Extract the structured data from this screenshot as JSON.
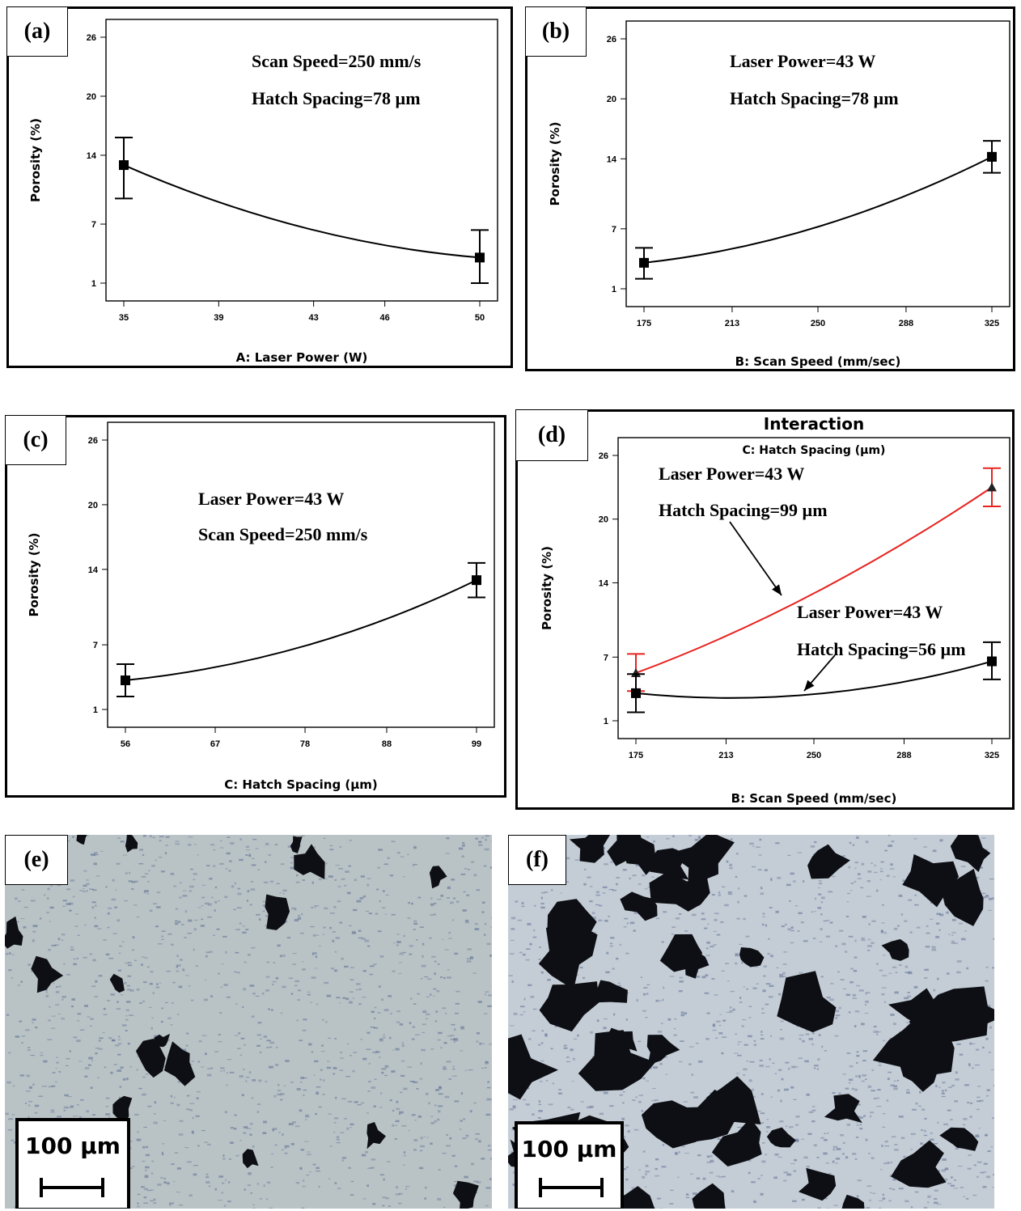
{
  "chart_data": [
    {
      "panel": "(a)",
      "type": "line",
      "xlabel": "A: Laser Power (W)",
      "ylabel": "Porosity (%)",
      "xticks": [
        35,
        39,
        43,
        46,
        50
      ],
      "yticks": [
        1,
        7,
        14,
        20,
        26
      ],
      "xlim": [
        35,
        50
      ],
      "ylim": [
        1,
        26
      ],
      "annotations": [
        "Scan Speed=250 mm/s",
        "Hatch Spacing=78 µm"
      ],
      "series": [
        {
          "points": [
            [
              35,
              13.0
            ],
            [
              50,
              3.6
            ]
          ],
          "error": [
            [
              9.6,
              15.8
            ],
            [
              1.0,
              6.4
            ]
          ],
          "curve_mid": [
            42.5,
            6.7
          ],
          "color": "#000000",
          "marker": "square"
        }
      ]
    },
    {
      "panel": "(b)",
      "type": "line",
      "xlabel": "B: Scan Speed (mm/sec)",
      "ylabel": "Porosity (%)",
      "xticks": [
        175,
        213,
        250,
        288,
        325
      ],
      "yticks": [
        1,
        7,
        14,
        20,
        26
      ],
      "xlim": [
        175,
        325
      ],
      "ylim": [
        1,
        26
      ],
      "annotations": [
        "Laser Power=43 W",
        "Hatch Spacing=78 µm"
      ],
      "series": [
        {
          "points": [
            [
              175,
              3.6
            ],
            [
              325,
              14.2
            ]
          ],
          "error": [
            [
              2.0,
              5.1
            ],
            [
              12.6,
              15.8
            ]
          ],
          "curve_mid": [
            250,
            7.2
          ],
          "color": "#000000",
          "marker": "square"
        }
      ]
    },
    {
      "panel": "(c)",
      "type": "line",
      "xlabel": "C: Hatch Spacing (µm)",
      "ylabel": "Porosity (%)",
      "xticks": [
        56,
        67,
        78,
        88,
        99
      ],
      "yticks": [
        1,
        7,
        14,
        20,
        26
      ],
      "xlim": [
        56,
        99
      ],
      "ylim": [
        1,
        26
      ],
      "annotations": [
        "Laser Power=43 W",
        "Scan Speed=250 mm/s"
      ],
      "series": [
        {
          "points": [
            [
              56,
              3.7
            ],
            [
              99,
              13.0
            ]
          ],
          "error": [
            [
              2.2,
              5.2
            ],
            [
              11.4,
              14.6
            ]
          ],
          "curve_mid": [
            78,
            6.9
          ],
          "color": "#000000",
          "marker": "square"
        }
      ]
    },
    {
      "panel": "(d)",
      "type": "line",
      "title": "Interaction",
      "subtitle": "C: Hatch Spacing (µm)",
      "xlabel": "B: Scan Speed (mm/sec)",
      "ylabel": "Porosity (%)",
      "xticks": [
        175,
        213,
        250,
        288,
        325
      ],
      "yticks": [
        1,
        7,
        14,
        20,
        26
      ],
      "xlim": [
        175,
        325
      ],
      "ylim": [
        1,
        26
      ],
      "annotations": [
        "Laser Power=43 W",
        "Hatch Spacing=99 µm",
        "Laser Power=43 W",
        "Hatch Spacing=56 µm"
      ],
      "series": [
        {
          "points": [
            [
              175,
              5.5
            ],
            [
              325,
              23.0
            ]
          ],
          "error": [
            [
              3.8,
              7.3
            ],
            [
              21.2,
              24.8
            ]
          ],
          "curve_mid": [
            250,
            13.0
          ],
          "color": "#e8231f",
          "marker": "triangle"
        },
        {
          "points": [
            [
              175,
              3.6
            ],
            [
              325,
              6.6
            ]
          ],
          "error": [
            [
              1.8,
              5.4
            ],
            [
              4.9,
              8.4
            ]
          ],
          "curve_mid": [
            250,
            3.5
          ],
          "color": "#000000",
          "marker": "square"
        }
      ]
    }
  ],
  "micrographs": [
    {
      "panel": "(e)",
      "scale_label": "100 µm"
    },
    {
      "panel": "(f)",
      "scale_label": "100 µm"
    }
  ]
}
